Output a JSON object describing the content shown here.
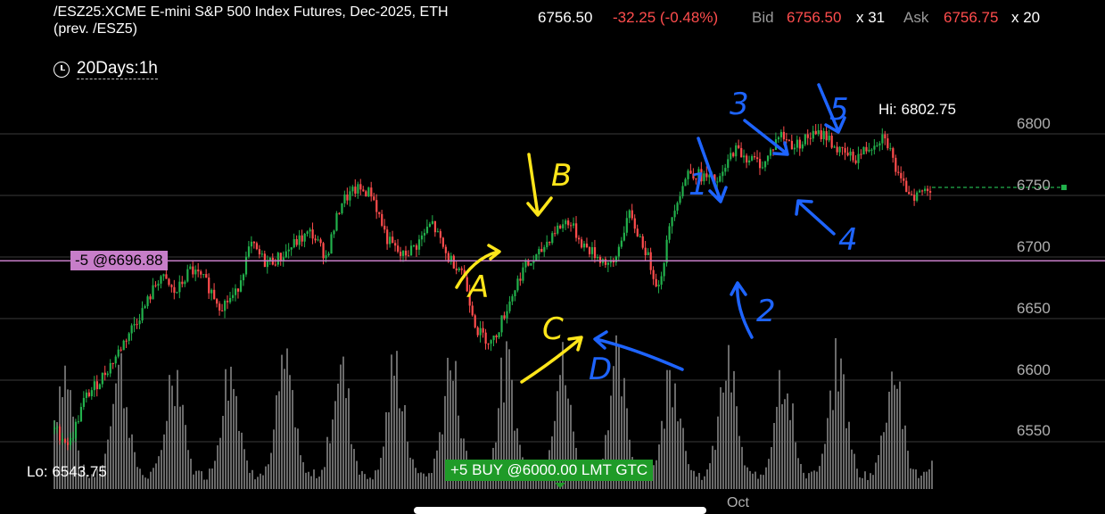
{
  "header": {
    "symbol_title": "/ESZ25:XCME E-mini S&P 500 Index Futures, Dec-2025, ETH",
    "prev_symbol": "(prev. /ESZ5)",
    "last": "6756.50",
    "change": "-32.25 (-0.48%)",
    "bid_label": "Bid",
    "bid": "6756.50",
    "bid_size": "x 31",
    "ask_label": "Ask",
    "ask": "6756.75",
    "ask_size": "x 20"
  },
  "timeframe": "20Days:1h",
  "colors": {
    "up": "#22b14c",
    "down": "#ff4d4d",
    "position_line": "#c77ec9",
    "order_tag": "#1f9b28",
    "annotation_yellow": "#ffe61a",
    "annotation_blue": "#1e64ff"
  },
  "chart_data": {
    "type": "candlestick",
    "title": "/ESZ25:XCME E-mini S&P 500 Index Futures, Dec-2025, ETH",
    "y_ticks": [
      "6800",
      "6750",
      "6700",
      "6650",
      "6600",
      "6550"
    ],
    "ylim": [
      6530,
      6810
    ],
    "x_ticks": [
      "Oct"
    ],
    "grid": true,
    "high_label": "Hi: 6802.75",
    "low_label": "Lo: 6543.75",
    "last_price": 6756.5,
    "position": {
      "label": "-5 @6696.88",
      "price": 6696.88
    },
    "order": {
      "label": "+5 BUY @6000.00 LMT GTC"
    },
    "price_path": [
      6560,
      6548,
      6585,
      6600,
      6618,
      6640,
      6660,
      6685,
      6670,
      6690,
      6680,
      6660,
      6670,
      6710,
      6695,
      6700,
      6712,
      6720,
      6700,
      6745,
      6755,
      6752,
      6715,
      6700,
      6710,
      6728,
      6700,
      6690,
      6640,
      6630,
      6660,
      6690,
      6700,
      6720,
      6730,
      6710,
      6700,
      6692,
      6735,
      6710,
      6675,
      6740,
      6770,
      6765,
      6760,
      6788,
      6780,
      6775,
      6800,
      6790,
      6798,
      6800,
      6785,
      6780,
      6790,
      6800,
      6760,
      6750,
      6756.5
    ],
    "annotations": {
      "yellow": [
        "A",
        "B",
        "C",
        "D"
      ],
      "blue": [
        "1",
        "2",
        "3",
        "4",
        "5"
      ]
    }
  }
}
